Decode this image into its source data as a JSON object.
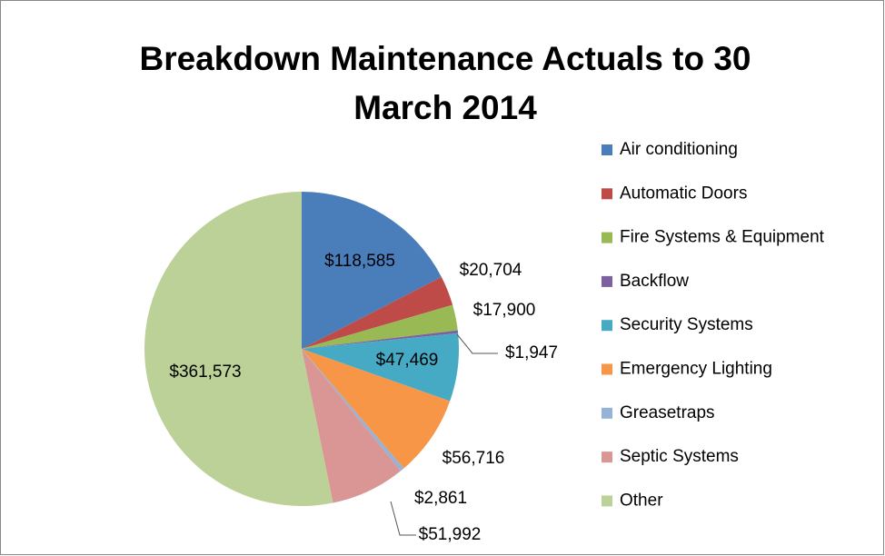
{
  "chart_data": {
    "type": "pie",
    "title": "Breakdown Maintenance Actuals to 30 March 2014",
    "categories": [
      "Air conditioning",
      "Automatic Doors",
      "Fire Systems & Equipment",
      "Backflow",
      "Security Systems",
      "Emergency Lighting",
      "Greasetraps",
      "Septic Systems",
      "Other"
    ],
    "values": [
      118585,
      20704,
      17900,
      1947,
      47469,
      56716,
      2861,
      51992,
      361573
    ],
    "value_labels": [
      "$118,585",
      "$20,704",
      "$17,900",
      "$1,947",
      "$47,469",
      "$56,716",
      "$2,861",
      "$51,992",
      "$361,573"
    ],
    "colors": [
      "#4a7ebb",
      "#be4b48",
      "#98b954",
      "#7d60a0",
      "#46aac5",
      "#f79646",
      "#95b3d7",
      "#d99694",
      "#bcd197"
    ],
    "legend": "right"
  }
}
